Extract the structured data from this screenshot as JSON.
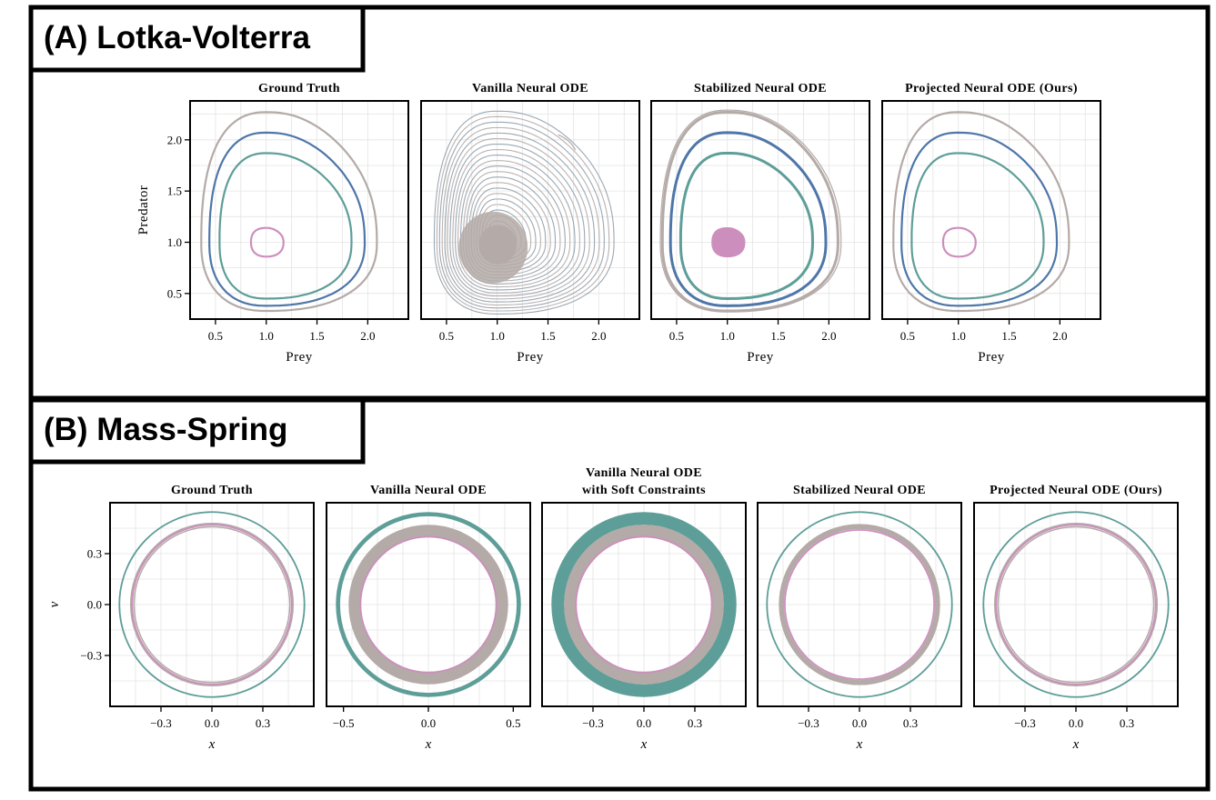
{
  "sections": [
    {
      "label": "(A) Lotka-Volterra"
    },
    {
      "label": "(B) Mass-Spring"
    }
  ],
  "colors": {
    "teal": "#5e9e98",
    "blue": "#4e76a8",
    "gray": "#b4aaa7",
    "pink": "#cc8fbd",
    "slate": "#8f9eac",
    "grid": "#e4e4e4"
  },
  "chart_data": [
    {
      "type": "line",
      "section": "lotka_volterra",
      "title": [
        "Ground Truth"
      ],
      "xlabel": "Prey",
      "ylabel": "Predator",
      "xlim": [
        0.25,
        2.4
      ],
      "ylim": [
        0.25,
        2.38
      ],
      "xticks": [
        "0.5",
        "1.0",
        "1.5",
        "2.0"
      ],
      "yticks": [
        "0.5",
        "1.0",
        "1.5",
        "2.0"
      ],
      "grid": true,
      "series": [
        {
          "color": "gray",
          "kind": "orbit",
          "x_range": [
            0.36,
            2.09
          ],
          "y_range": [
            0.33,
            2.27
          ]
        },
        {
          "color": "blue",
          "kind": "orbit",
          "x_range": [
            0.44,
            1.97
          ],
          "y_range": [
            0.38,
            2.07
          ]
        },
        {
          "color": "teal",
          "kind": "orbit",
          "x_range": [
            0.54,
            1.84
          ],
          "y_range": [
            0.45,
            1.87
          ]
        },
        {
          "color": "pink",
          "kind": "orbit",
          "x_range": [
            0.85,
            1.17
          ],
          "y_range": [
            0.86,
            1.14
          ]
        }
      ]
    },
    {
      "type": "line",
      "section": "lotka_volterra",
      "title": [
        "Vanilla Neural ODE"
      ],
      "xlabel": "Prey",
      "ylabel": "",
      "xlim": [
        0.25,
        2.4
      ],
      "ylim": [
        0.25,
        2.38
      ],
      "xticks": [
        "0.5",
        "1.0",
        "1.5",
        "2.0"
      ],
      "yticks": [],
      "grid": true,
      "series": [
        {
          "color": "slate",
          "kind": "spiral",
          "note": "outward spiral from (1.0, 1.0) to about (1.75, 1.9)"
        },
        {
          "color": "gray",
          "kind": "blob",
          "x_range": [
            0.62,
            1.3
          ],
          "y_range": [
            0.6,
            1.3
          ]
        }
      ]
    },
    {
      "type": "line",
      "section": "lotka_volterra",
      "title": [
        "Stabilized Neural ODE"
      ],
      "xlabel": "Prey",
      "ylabel": "",
      "xlim": [
        0.25,
        2.4
      ],
      "ylim": [
        0.25,
        2.38
      ],
      "xticks": [
        "0.5",
        "1.0",
        "1.5",
        "2.0"
      ],
      "yticks": [],
      "grid": true,
      "series": [
        {
          "color": "gray",
          "kind": "orbit",
          "x_range": [
            0.36,
            2.09
          ],
          "y_range": [
            0.33,
            2.27
          ]
        },
        {
          "color": "blue",
          "kind": "orbit",
          "x_range": [
            0.44,
            1.97
          ],
          "y_range": [
            0.38,
            2.07
          ]
        },
        {
          "color": "teal",
          "kind": "orbit",
          "x_range": [
            0.54,
            1.84
          ],
          "y_range": [
            0.45,
            1.87
          ]
        },
        {
          "color": "pink",
          "kind": "disc",
          "x_range": [
            0.85,
            1.17
          ],
          "y_range": [
            0.86,
            1.14
          ]
        }
      ]
    },
    {
      "type": "line",
      "section": "lotka_volterra",
      "title": [
        "Projected Neural ODE (Ours)"
      ],
      "xlabel": "Prey",
      "ylabel": "",
      "xlim": [
        0.25,
        2.4
      ],
      "ylim": [
        0.25,
        2.38
      ],
      "xticks": [
        "0.5",
        "1.0",
        "1.5",
        "2.0"
      ],
      "yticks": [],
      "grid": true,
      "series": [
        {
          "color": "gray",
          "kind": "orbit",
          "x_range": [
            0.36,
            2.09
          ],
          "y_range": [
            0.33,
            2.27
          ]
        },
        {
          "color": "blue",
          "kind": "orbit",
          "x_range": [
            0.44,
            1.97
          ],
          "y_range": [
            0.38,
            2.07
          ]
        },
        {
          "color": "teal",
          "kind": "orbit",
          "x_range": [
            0.54,
            1.84
          ],
          "y_range": [
            0.45,
            1.87
          ]
        },
        {
          "color": "pink",
          "kind": "orbit",
          "x_range": [
            0.85,
            1.17
          ],
          "y_range": [
            0.86,
            1.14
          ]
        }
      ]
    },
    {
      "type": "line",
      "section": "mass_spring",
      "title": [
        "Ground Truth"
      ],
      "xlabel": "x",
      "ylabel": "v",
      "xlim": [
        -0.6,
        0.6
      ],
      "ylim": [
        -0.6,
        0.6
      ],
      "xticks": [
        "−0.3",
        "0.0",
        "0.3"
      ],
      "yticks": [
        "−0.3",
        "0.0",
        "0.3"
      ],
      "grid": true,
      "series": [
        {
          "color": "teal",
          "kind": "ring",
          "r_inner": 0.545,
          "r_outer": 0.545
        },
        {
          "color": "gray",
          "kind": "ring",
          "r_inner": 0.475,
          "r_outer": 0.48
        },
        {
          "color": "pink",
          "kind": "ring",
          "r_inner": 0.47,
          "r_outer": 0.47
        }
      ]
    },
    {
      "type": "line",
      "section": "mass_spring",
      "title": [
        "Vanilla Neural ODE"
      ],
      "xlabel": "x",
      "ylabel": "",
      "xlim": [
        -0.6,
        0.6
      ],
      "ylim": [
        -0.6,
        0.6
      ],
      "xticks": [
        "−0.5",
        "0.0",
        "0.5"
      ],
      "yticks": [],
      "grid": true,
      "series": [
        {
          "color": "teal",
          "kind": "ring",
          "r_inner": 0.52,
          "r_outer": 0.545
        },
        {
          "color": "gray",
          "kind": "ring",
          "r_inner": 0.4,
          "r_outer": 0.47
        },
        {
          "color": "pink",
          "kind": "ring",
          "r_inner": 0.4,
          "r_outer": 0.4
        }
      ]
    },
    {
      "type": "line",
      "section": "mass_spring",
      "title": [
        "Vanilla Neural ODE",
        "with Soft Constraints"
      ],
      "xlabel": "x",
      "ylabel": "",
      "xlim": [
        -0.6,
        0.6
      ],
      "ylim": [
        -0.6,
        0.6
      ],
      "xticks": [
        "−0.3",
        "0.0",
        "0.3"
      ],
      "yticks": [],
      "grid": true,
      "series": [
        {
          "color": "teal",
          "kind": "ring",
          "r_inner": 0.47,
          "r_outer": 0.545
        },
        {
          "color": "gray",
          "kind": "ring",
          "r_inner": 0.4,
          "r_outer": 0.47
        },
        {
          "color": "pink",
          "kind": "ring",
          "r_inner": 0.4,
          "r_outer": 0.4
        }
      ]
    },
    {
      "type": "line",
      "section": "mass_spring",
      "title": [
        "Stabilized Neural ODE"
      ],
      "xlabel": "x",
      "ylabel": "",
      "xlim": [
        -0.6,
        0.6
      ],
      "ylim": [
        -0.6,
        0.6
      ],
      "xticks": [
        "−0.3",
        "0.0",
        "0.3"
      ],
      "yticks": [],
      "grid": true,
      "series": [
        {
          "color": "teal",
          "kind": "ring",
          "r_inner": 0.545,
          "r_outer": 0.545
        },
        {
          "color": "gray",
          "kind": "ring",
          "r_inner": 0.445,
          "r_outer": 0.475
        },
        {
          "color": "pink",
          "kind": "ring",
          "r_inner": 0.44,
          "r_outer": 0.44
        }
      ]
    },
    {
      "type": "line",
      "section": "mass_spring",
      "title": [
        "Projected Neural ODE (Ours)"
      ],
      "xlabel": "x",
      "ylabel": "",
      "xlim": [
        -0.6,
        0.6
      ],
      "ylim": [
        -0.6,
        0.6
      ],
      "xticks": [
        "−0.3",
        "0.0",
        "0.3"
      ],
      "yticks": [],
      "grid": true,
      "series": [
        {
          "color": "teal",
          "kind": "ring",
          "r_inner": 0.545,
          "r_outer": 0.545
        },
        {
          "color": "gray",
          "kind": "ring",
          "r_inner": 0.475,
          "r_outer": 0.48
        },
        {
          "color": "pink",
          "kind": "ring",
          "r_inner": 0.47,
          "r_outer": 0.47
        }
      ]
    }
  ]
}
